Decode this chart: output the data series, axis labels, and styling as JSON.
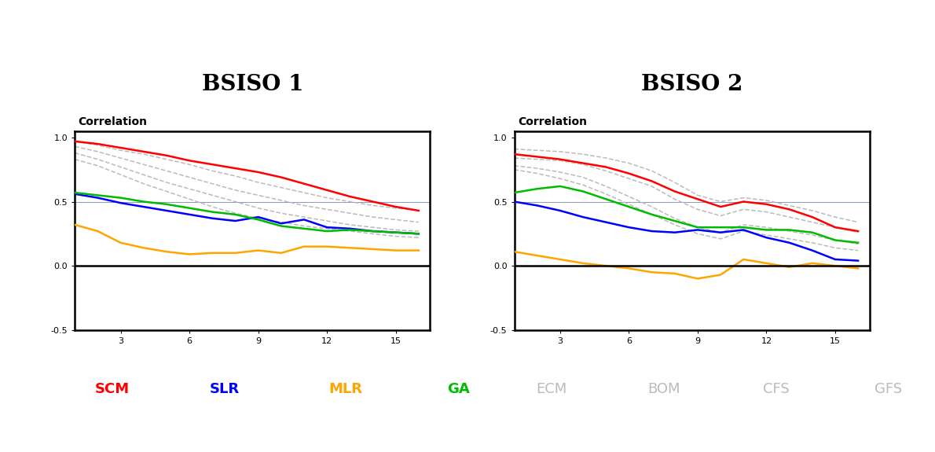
{
  "x": [
    1,
    2,
    3,
    4,
    5,
    6,
    7,
    8,
    9,
    10,
    11,
    12,
    13,
    14,
    15,
    16
  ],
  "bsiso1": {
    "SCM": [
      0.97,
      0.95,
      0.92,
      0.89,
      0.86,
      0.82,
      0.79,
      0.76,
      0.73,
      0.69,
      0.64,
      0.59,
      0.54,
      0.5,
      0.46,
      0.43
    ],
    "SLR": [
      0.56,
      0.53,
      0.49,
      0.46,
      0.43,
      0.4,
      0.37,
      0.35,
      0.38,
      0.33,
      0.36,
      0.3,
      0.29,
      0.27,
      0.26,
      0.25
    ],
    "MLR": [
      0.32,
      0.27,
      0.18,
      0.14,
      0.11,
      0.09,
      0.1,
      0.1,
      0.12,
      0.1,
      0.15,
      0.15,
      0.14,
      0.13,
      0.12,
      0.12
    ],
    "GA": [
      0.57,
      0.55,
      0.53,
      0.5,
      0.48,
      0.45,
      0.42,
      0.4,
      0.36,
      0.31,
      0.29,
      0.27,
      0.28,
      0.27,
      0.26,
      0.25
    ],
    "ECM": [
      0.97,
      0.94,
      0.9,
      0.87,
      0.83,
      0.79,
      0.74,
      0.7,
      0.65,
      0.61,
      0.57,
      0.53,
      0.5,
      0.47,
      0.45,
      0.43
    ],
    "BOM": [
      0.93,
      0.89,
      0.84,
      0.79,
      0.74,
      0.69,
      0.64,
      0.59,
      0.55,
      0.51,
      0.47,
      0.44,
      0.41,
      0.38,
      0.36,
      0.34
    ],
    "CFS": [
      0.88,
      0.83,
      0.77,
      0.71,
      0.65,
      0.6,
      0.55,
      0.5,
      0.45,
      0.41,
      0.38,
      0.35,
      0.32,
      0.3,
      0.28,
      0.27
    ],
    "GFS": [
      0.83,
      0.78,
      0.71,
      0.64,
      0.58,
      0.52,
      0.46,
      0.41,
      0.37,
      0.34,
      0.31,
      0.29,
      0.27,
      0.25,
      0.23,
      0.22
    ]
  },
  "bsiso2": {
    "SCM": [
      0.87,
      0.85,
      0.83,
      0.8,
      0.77,
      0.72,
      0.66,
      0.58,
      0.52,
      0.46,
      0.5,
      0.48,
      0.44,
      0.38,
      0.3,
      0.27
    ],
    "SLR": [
      0.5,
      0.47,
      0.43,
      0.38,
      0.34,
      0.3,
      0.27,
      0.26,
      0.28,
      0.26,
      0.28,
      0.22,
      0.18,
      0.12,
      0.05,
      0.04
    ],
    "MLR": [
      0.11,
      0.08,
      0.05,
      0.02,
      0.0,
      -0.02,
      -0.05,
      -0.06,
      -0.1,
      -0.07,
      0.05,
      0.02,
      -0.01,
      0.02,
      0.0,
      -0.02
    ],
    "GA": [
      0.57,
      0.6,
      0.62,
      0.58,
      0.52,
      0.46,
      0.4,
      0.35,
      0.3,
      0.3,
      0.3,
      0.28,
      0.28,
      0.26,
      0.2,
      0.18
    ],
    "ECM": [
      0.91,
      0.9,
      0.89,
      0.87,
      0.84,
      0.8,
      0.74,
      0.65,
      0.55,
      0.5,
      0.53,
      0.51,
      0.47,
      0.43,
      0.38,
      0.34
    ],
    "BOM": [
      0.84,
      0.83,
      0.82,
      0.79,
      0.74,
      0.68,
      0.62,
      0.52,
      0.44,
      0.39,
      0.44,
      0.42,
      0.38,
      0.34,
      0.3,
      0.26
    ],
    "CFS": [
      0.78,
      0.76,
      0.73,
      0.69,
      0.62,
      0.54,
      0.46,
      0.37,
      0.3,
      0.26,
      0.32,
      0.3,
      0.27,
      0.24,
      0.2,
      0.17
    ],
    "GFS": [
      0.75,
      0.72,
      0.68,
      0.63,
      0.56,
      0.48,
      0.4,
      0.32,
      0.25,
      0.21,
      0.27,
      0.24,
      0.21,
      0.18,
      0.14,
      0.12
    ]
  },
  "colors": {
    "SCM": "#ff0000",
    "SLR": "#0000ff",
    "MLR": "#ffa500",
    "GA": "#00bb00",
    "ECM": "#bbbbbb",
    "BOM": "#bbbbbb",
    "CFS": "#bbbbbb",
    "GFS": "#bbbbbb"
  },
  "ylim": [
    -0.5,
    1.05
  ],
  "yticks": [
    -0.5,
    0.0,
    0.5,
    1.0
  ],
  "yticklabels": [
    "-0.5",
    "0.0",
    "0.5",
    "1.0"
  ],
  "xticks": [
    3,
    6,
    9,
    12,
    15
  ],
  "hline_y": 0.5,
  "title1": "BSISO 1",
  "title2": "BSISO 2",
  "corr_label": "Correlation",
  "background_color": "#ffffff",
  "title_fontsize": 20,
  "corr_fontsize": 10,
  "tick_fontsize": 8,
  "legend_fontsize": 13,
  "legend_colors_1": [
    "#ff0000",
    "#0000ff",
    "#ffa500",
    "#00bb00"
  ],
  "legend_labels_1": [
    "SCM",
    "SLR",
    "MLR",
    "GA"
  ],
  "legend_colors_2": [
    "#bbbbbb",
    "#bbbbbb",
    "#bbbbbb",
    "#bbbbbb"
  ],
  "legend_labels_2": [
    "ECM",
    "BOM",
    "CFS",
    "GFS"
  ]
}
